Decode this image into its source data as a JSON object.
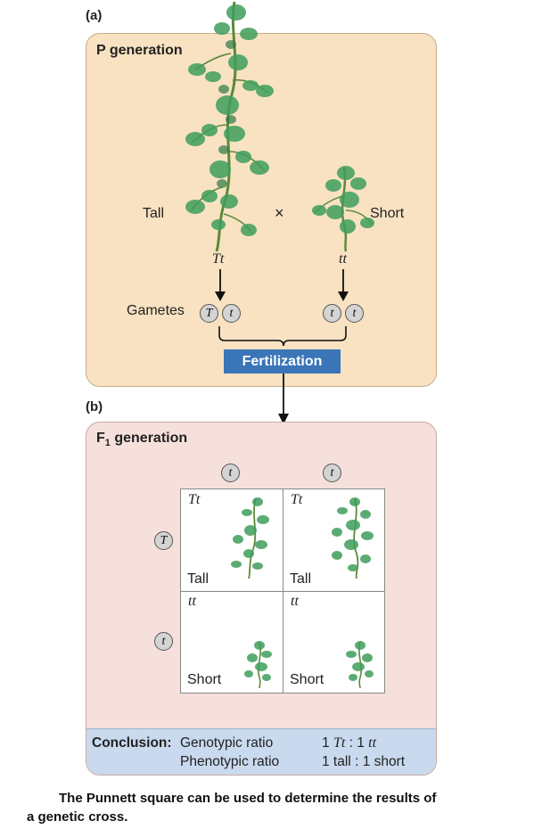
{
  "part_a": {
    "label": "(a)",
    "generation_title": "P generation",
    "tall_label": "Tall",
    "cross_symbol": "×",
    "short_label": "Short",
    "tall_genotype": "Tt",
    "short_genotype": "tt",
    "gametes_label": "Gametes",
    "tall_gametes": [
      "T",
      "t"
    ],
    "short_gametes": [
      "t",
      "t"
    ],
    "fertilization_label": "Fertilization"
  },
  "part_b": {
    "label": "(b)",
    "generation_title_main": "F",
    "generation_title_sub": "1",
    "generation_title_rest": "generation",
    "column_alleles": [
      "t",
      "t"
    ],
    "row_alleles": [
      "T",
      "t"
    ],
    "cells": [
      {
        "genotype": "Tt",
        "phenotype": "Tall"
      },
      {
        "genotype": "Tt",
        "phenotype": "Tall"
      },
      {
        "genotype": "tt",
        "phenotype": "Short"
      },
      {
        "genotype": "tt",
        "phenotype": "Short"
      }
    ],
    "conclusion": {
      "label": "Conclusion:",
      "genotypic_label": "Genotypic ratio",
      "genotypic_num1": "1",
      "genotypic_g1": "Tt",
      "genotypic_colon": ":",
      "genotypic_num2": "1",
      "genotypic_g2": "tt",
      "phenotypic_label": "Phenotypic ratio",
      "phenotypic_part1": "1 tall",
      "phenotypic_colon": ":",
      "phenotypic_part2": "1 short"
    }
  },
  "caption": {
    "line1": "The Punnett square can be used to determine the results of",
    "line2": "a genetic cross."
  },
  "colors": {
    "panel_a_bg": "#f8e2c2",
    "panel_b_bg": "#f6e0dc",
    "fertilization_bg": "#3a75b8",
    "conclusion_bg": "#c9d9ee",
    "plant_leaf": "#3f9e5c",
    "plant_stem": "#5c8a3a"
  }
}
